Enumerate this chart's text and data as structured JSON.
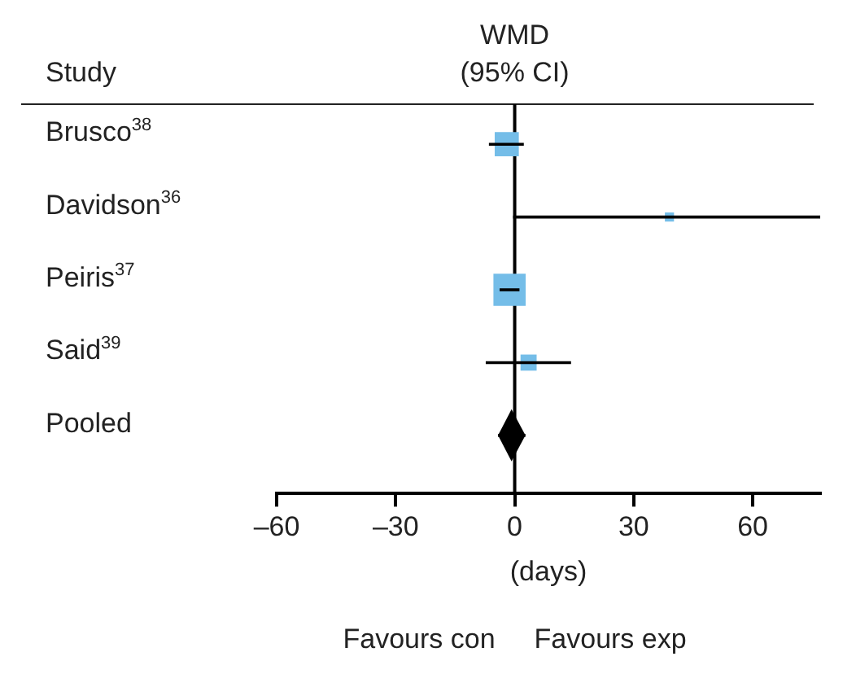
{
  "chart_data": {
    "type": "scatter",
    "orientation": "horizontal",
    "title": "WMD\n(95% CI)",
    "ylabel": "Study",
    "xlabel": "(days)",
    "categories": [
      "Brusco$^{38}$",
      "Davidson$^{36}$",
      "Peiris$^{37}$",
      "Said$^{39}$",
      "Pooled"
    ],
    "series": [
      {
        "type": "scatter",
        "marker": "square",
        "color": "#74bde8",
        "values": [
          -2,
          39,
          -1.3,
          3.5,
          null
        ],
        "sizes": [
          0.56,
          0.08,
          1,
          0.25,
          null
        ],
        "errors": [
          [
            -6.5,
            2.3
          ],
          [
            -0.4,
            77
          ],
          [
            -3.8,
            1.2
          ],
          [
            -7.3,
            14.2
          ],
          null
        ]
      },
      {
        "type": "scatter",
        "marker": "diamond",
        "color": "#000000",
        "values": [
          null,
          null,
          null,
          null,
          -0.8
        ],
        "errors": [
          null,
          null,
          null,
          null,
          [
            -4.2,
            2.7
          ]
        ]
      }
    ],
    "xlim": [
      -60,
      77
    ],
    "xticks": [
      {
        "value": -60,
        "label": "–60"
      },
      {
        "value": -30,
        "label": "–30"
      },
      0,
      30,
      60
    ],
    "ref_lines": [
      {
        "axis": "x",
        "value": 0
      }
    ],
    "annotations": [
      "Favours con",
      "Favours exp"
    ],
    "grid": false,
    "legend": false
  }
}
